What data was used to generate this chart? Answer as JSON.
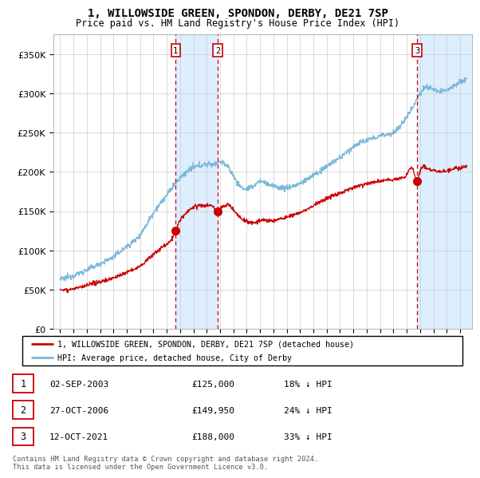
{
  "title": "1, WILLOWSIDE GREEN, SPONDON, DERBY, DE21 7SP",
  "subtitle": "Price paid vs. HM Land Registry's House Price Index (HPI)",
  "legend_line1": "1, WILLOWSIDE GREEN, SPONDON, DERBY, DE21 7SP (detached house)",
  "legend_line2": "HPI: Average price, detached house, City of Derby",
  "footer": "Contains HM Land Registry data © Crown copyright and database right 2024.\nThis data is licensed under the Open Government Licence v3.0.",
  "transactions": [
    {
      "num": 1,
      "date": "02-SEP-2003",
      "price": 125000,
      "pct": "18%",
      "year_x": 2003.67
    },
    {
      "num": 2,
      "date": "27-OCT-2006",
      "price": 149950,
      "pct": "24%",
      "year_x": 2006.82
    },
    {
      "num": 3,
      "date": "12-OCT-2021",
      "price": 188000,
      "pct": "33%",
      "year_x": 2021.78
    }
  ],
  "hpi_color": "#7ab8d9",
  "price_color": "#cc0000",
  "vline_color": "#cc0000",
  "shade_color": "#ddeeff",
  "grid_color": "#cccccc",
  "ylim": [
    0,
    375000
  ],
  "yticks": [
    0,
    50000,
    100000,
    150000,
    200000,
    250000,
    300000,
    350000
  ],
  "xmin": 1994.5,
  "xmax": 2025.9,
  "hpi_keypoints": [
    [
      1995.0,
      63000
    ],
    [
      1996.0,
      68000
    ],
    [
      1997.0,
      75000
    ],
    [
      1998.0,
      83000
    ],
    [
      1999.0,
      92000
    ],
    [
      2000.0,
      105000
    ],
    [
      2001.0,
      120000
    ],
    [
      2002.0,
      148000
    ],
    [
      2003.0,
      170000
    ],
    [
      2003.5,
      182000
    ],
    [
      2004.0,
      192000
    ],
    [
      2004.5,
      200000
    ],
    [
      2005.0,
      205000
    ],
    [
      2005.5,
      208000
    ],
    [
      2006.0,
      210000
    ],
    [
      2006.5,
      210000
    ],
    [
      2007.0,
      213000
    ],
    [
      2007.5,
      208000
    ],
    [
      2008.0,
      195000
    ],
    [
      2008.5,
      182000
    ],
    [
      2009.0,
      178000
    ],
    [
      2009.5,
      182000
    ],
    [
      2010.0,
      188000
    ],
    [
      2010.5,
      185000
    ],
    [
      2011.0,
      182000
    ],
    [
      2011.5,
      180000
    ],
    [
      2012.0,
      180000
    ],
    [
      2012.5,
      182000
    ],
    [
      2013.0,
      185000
    ],
    [
      2013.5,
      190000
    ],
    [
      2014.0,
      196000
    ],
    [
      2014.5,
      200000
    ],
    [
      2015.0,
      207000
    ],
    [
      2015.5,
      213000
    ],
    [
      2016.0,
      218000
    ],
    [
      2016.5,
      225000
    ],
    [
      2017.0,
      232000
    ],
    [
      2017.5,
      237000
    ],
    [
      2018.0,
      240000
    ],
    [
      2018.5,
      243000
    ],
    [
      2019.0,
      246000
    ],
    [
      2019.5,
      248000
    ],
    [
      2020.0,
      250000
    ],
    [
      2020.5,
      258000
    ],
    [
      2021.0,
      270000
    ],
    [
      2021.5,
      285000
    ],
    [
      2022.0,
      300000
    ],
    [
      2022.5,
      308000
    ],
    [
      2023.0,
      305000
    ],
    [
      2023.5,
      302000
    ],
    [
      2024.0,
      305000
    ],
    [
      2024.5,
      310000
    ],
    [
      2025.0,
      315000
    ],
    [
      2025.5,
      318000
    ]
  ],
  "pp_keypoints": [
    [
      1995.0,
      50000
    ],
    [
      1996.0,
      51000
    ],
    [
      1997.0,
      55000
    ],
    [
      1998.0,
      60000
    ],
    [
      1999.0,
      65000
    ],
    [
      2000.0,
      72000
    ],
    [
      2001.0,
      80000
    ],
    [
      2002.0,
      95000
    ],
    [
      2003.0,
      108000
    ],
    [
      2003.5,
      118000
    ],
    [
      2003.67,
      125000
    ],
    [
      2004.0,
      138000
    ],
    [
      2004.5,
      148000
    ],
    [
      2005.0,
      155000
    ],
    [
      2005.5,
      157000
    ],
    [
      2006.0,
      157000
    ],
    [
      2006.5,
      155000
    ],
    [
      2006.82,
      149950
    ],
    [
      2007.0,
      152000
    ],
    [
      2007.5,
      158000
    ],
    [
      2008.0,
      152000
    ],
    [
      2008.5,
      142000
    ],
    [
      2009.0,
      137000
    ],
    [
      2009.5,
      135000
    ],
    [
      2010.0,
      138000
    ],
    [
      2010.5,
      138000
    ],
    [
      2011.0,
      138000
    ],
    [
      2011.5,
      140000
    ],
    [
      2012.0,
      142000
    ],
    [
      2012.5,
      145000
    ],
    [
      2013.0,
      148000
    ],
    [
      2013.5,
      152000
    ],
    [
      2014.0,
      157000
    ],
    [
      2014.5,
      162000
    ],
    [
      2015.0,
      166000
    ],
    [
      2015.5,
      170000
    ],
    [
      2016.0,
      173000
    ],
    [
      2016.5,
      177000
    ],
    [
      2017.0,
      180000
    ],
    [
      2017.5,
      183000
    ],
    [
      2018.0,
      185000
    ],
    [
      2018.5,
      187000
    ],
    [
      2019.0,
      188000
    ],
    [
      2019.5,
      190000
    ],
    [
      2020.0,
      190000
    ],
    [
      2020.5,
      192000
    ],
    [
      2021.0,
      196000
    ],
    [
      2021.5,
      202000
    ],
    [
      2021.78,
      188000
    ],
    [
      2022.0,
      200000
    ],
    [
      2022.5,
      205000
    ],
    [
      2023.0,
      202000
    ],
    [
      2023.5,
      200000
    ],
    [
      2024.0,
      202000
    ],
    [
      2024.5,
      204000
    ],
    [
      2025.0,
      205000
    ],
    [
      2025.5,
      206000
    ]
  ]
}
